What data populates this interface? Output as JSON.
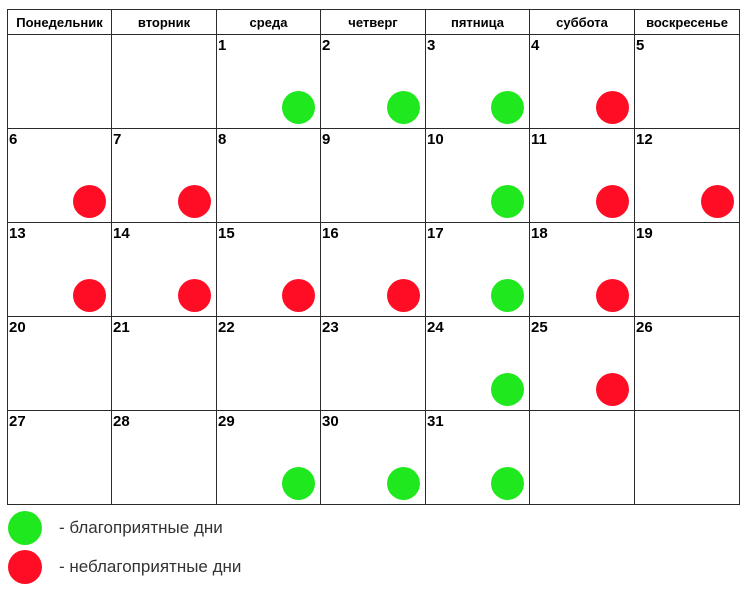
{
  "weekdays": [
    "Понедельник",
    "вторник",
    "среда",
    "четверг",
    "пятница",
    "суббота",
    "воскресенье"
  ],
  "colors": {
    "good": "#1fe81f",
    "bad": "#ff0d25",
    "grid": "#2b2b2b"
  },
  "weeks": [
    [
      null,
      null,
      {
        "day": "1",
        "mark": "good"
      },
      {
        "day": "2",
        "mark": "good"
      },
      {
        "day": "3",
        "mark": "good"
      },
      {
        "day": "4",
        "mark": "bad"
      },
      {
        "day": "5",
        "mark": null
      }
    ],
    [
      {
        "day": "6",
        "mark": "bad"
      },
      {
        "day": "7",
        "mark": "bad"
      },
      {
        "day": "8",
        "mark": null
      },
      {
        "day": "9",
        "mark": null
      },
      {
        "day": "10",
        "mark": "good"
      },
      {
        "day": "11",
        "mark": "bad"
      },
      {
        "day": "12",
        "mark": "bad"
      }
    ],
    [
      {
        "day": "13",
        "mark": "bad"
      },
      {
        "day": "14",
        "mark": "bad"
      },
      {
        "day": "15",
        "mark": "bad"
      },
      {
        "day": "16",
        "mark": "bad"
      },
      {
        "day": "17",
        "mark": "good"
      },
      {
        "day": "18",
        "mark": "bad"
      },
      {
        "day": "19",
        "mark": null
      }
    ],
    [
      {
        "day": "20",
        "mark": null
      },
      {
        "day": "21",
        "mark": null
      },
      {
        "day": "22",
        "mark": null
      },
      {
        "day": "23",
        "mark": null
      },
      {
        "day": "24",
        "mark": "good"
      },
      {
        "day": "25",
        "mark": "bad"
      },
      {
        "day": "26",
        "mark": null
      }
    ],
    [
      {
        "day": "27",
        "mark": null
      },
      {
        "day": "28",
        "mark": null
      },
      {
        "day": "29",
        "mark": "good"
      },
      {
        "day": "30",
        "mark": "good"
      },
      {
        "day": "31",
        "mark": "good"
      },
      null,
      null
    ]
  ],
  "legend": {
    "good_label": "- благоприятные дни",
    "bad_label": "- неблагоприятные дни"
  }
}
